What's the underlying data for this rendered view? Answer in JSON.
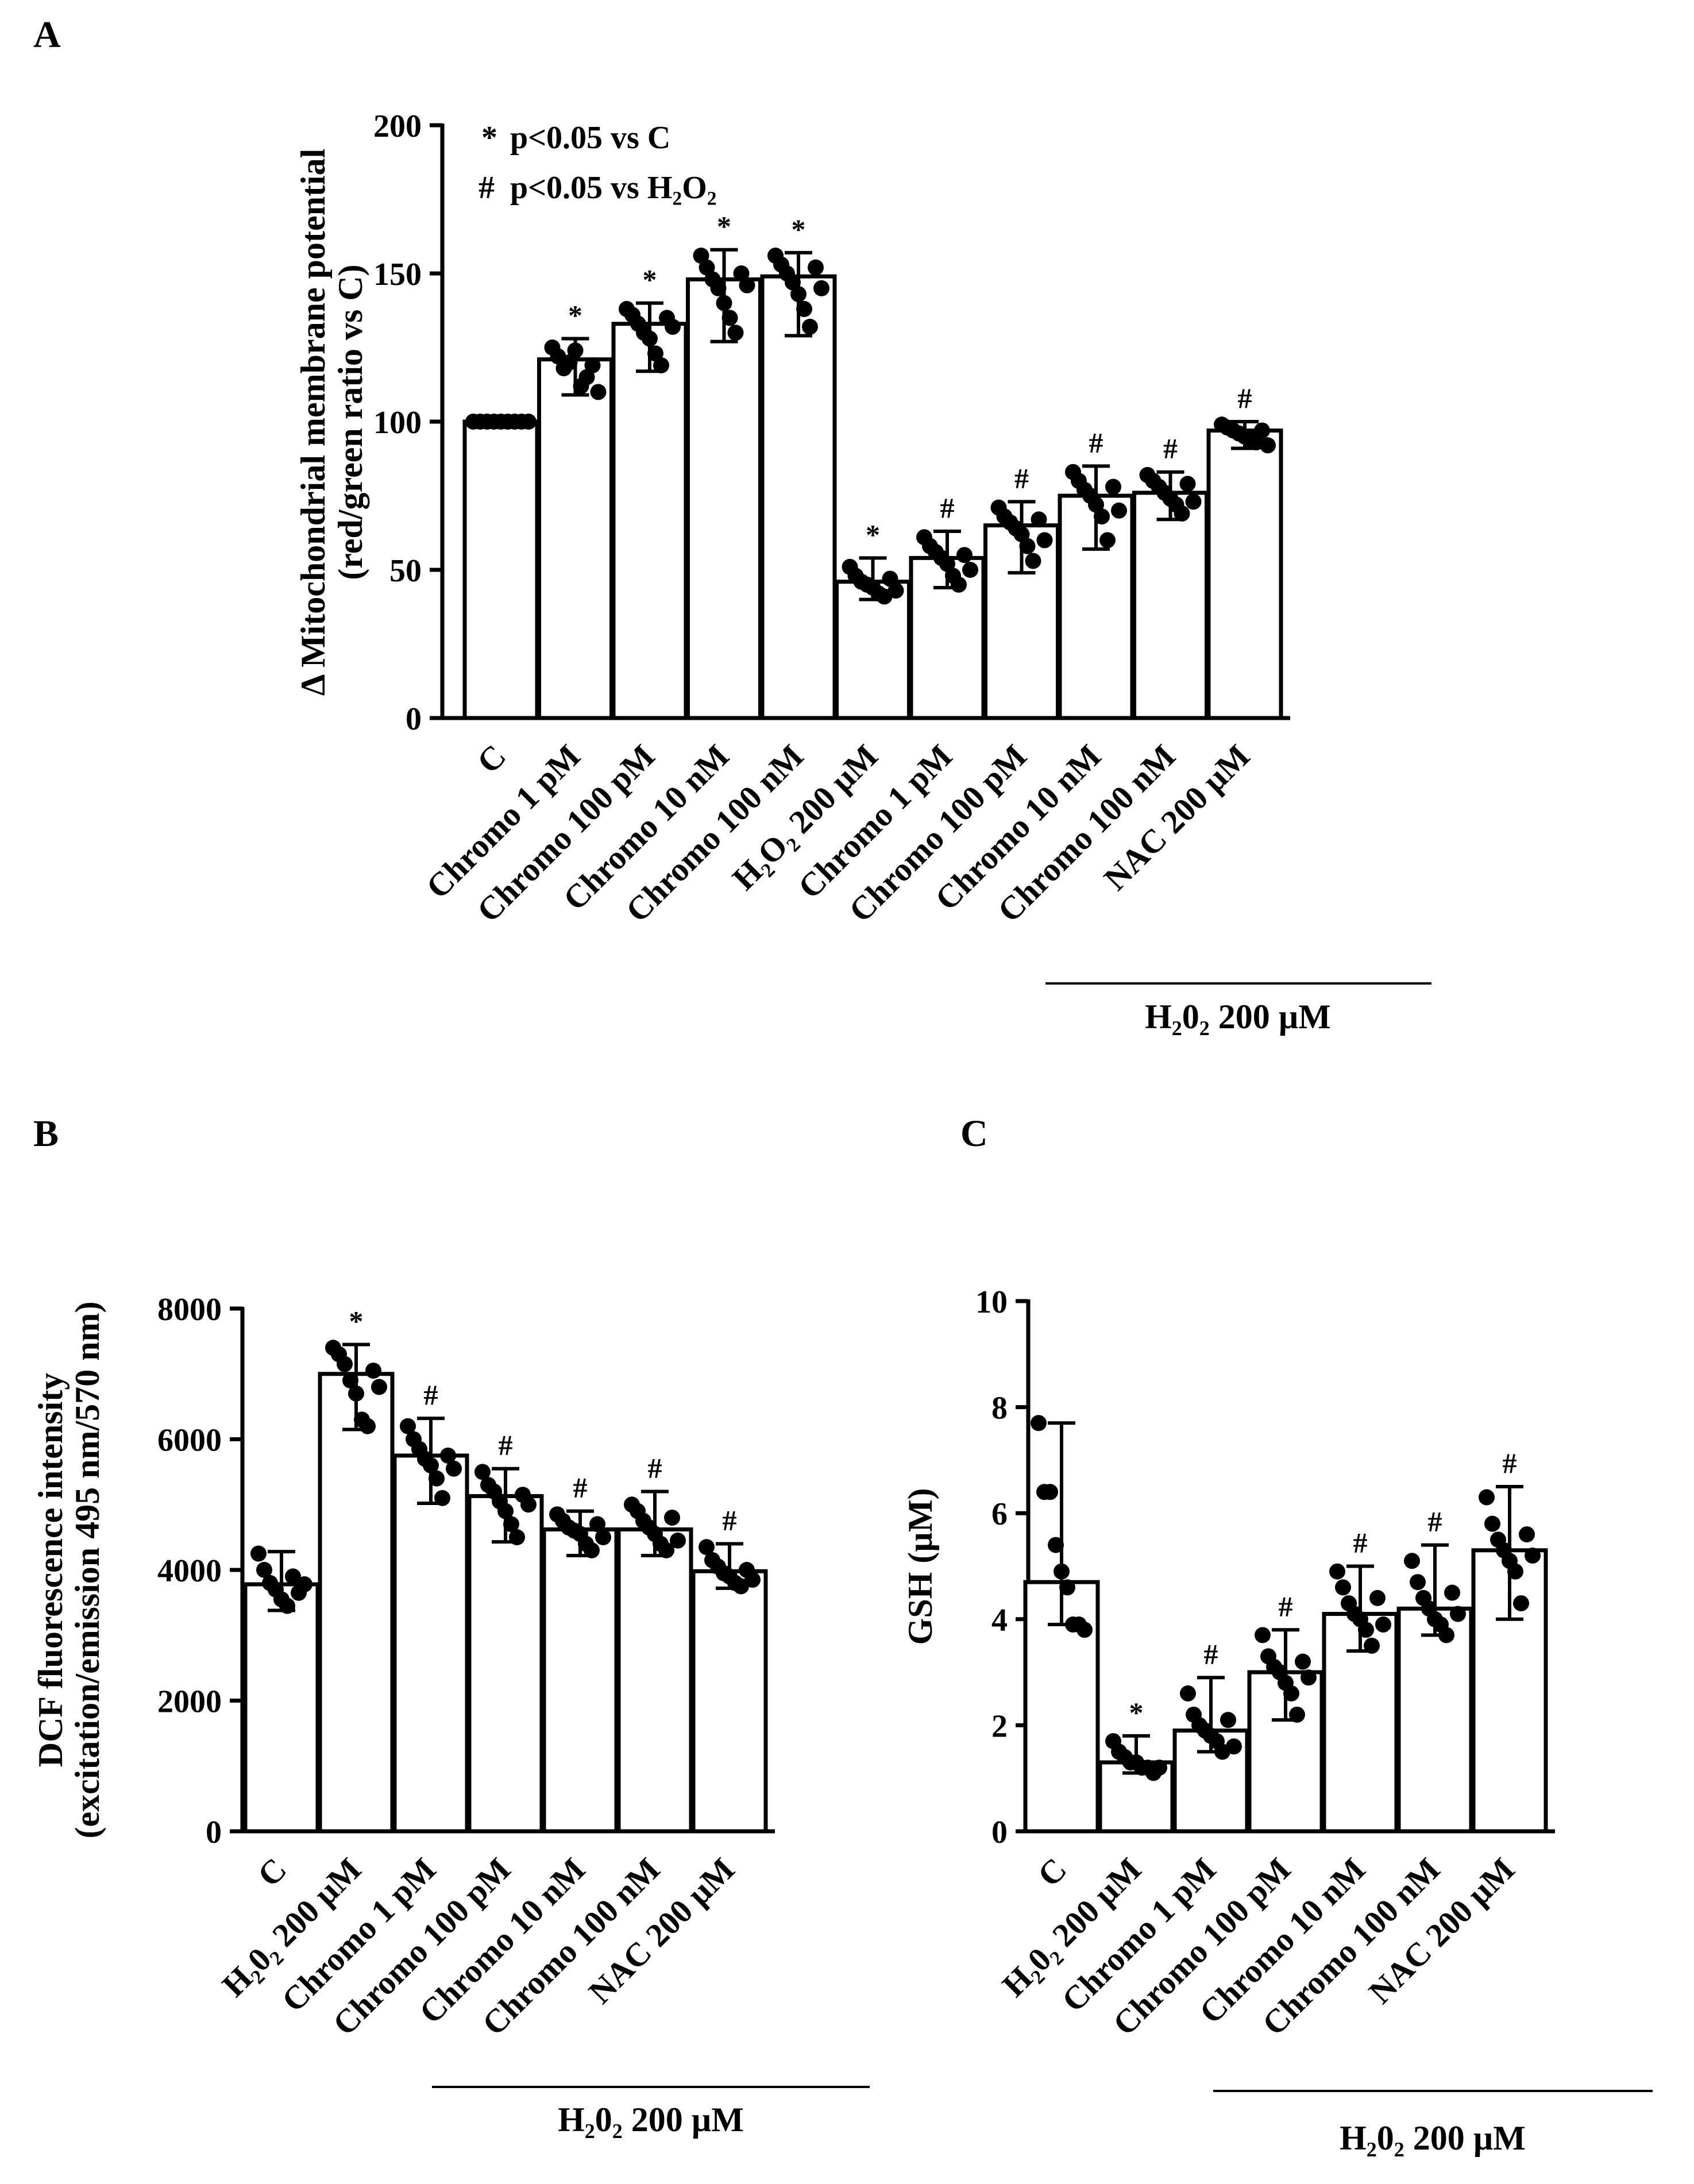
{
  "chart_data": [
    {
      "panel": "A",
      "type": "bar",
      "ylabel": "Δ Mitochondrial membrane potential",
      "ylabel2": "(red/green ratio vs C)",
      "yticks": [
        "0",
        "50",
        "100",
        "150",
        "200"
      ],
      "ylim": [
        0,
        200
      ],
      "categories": [
        "C",
        "Chromo 1 pM",
        "Chromo 100 pM",
        "Chromo 10 nM",
        "Chromo 100 nM",
        "H₂O₂ 200 µM",
        "Chromo 1 pM",
        "Chromo 100 pM",
        "Chromo 10 nM",
        "Chromo 100 nM",
        "NAC 200 µM"
      ],
      "values": [
        100,
        121,
        133,
        148,
        149,
        46,
        54,
        65,
        75,
        76,
        97
      ],
      "error_low": [
        100,
        109,
        117,
        127,
        129,
        40,
        44,
        49,
        57,
        67,
        91
      ],
      "error_high": [
        100,
        128,
        140,
        158,
        157,
        54,
        63,
        73,
        85,
        83,
        100
      ],
      "points": [
        [
          100,
          100,
          100,
          100,
          100,
          100,
          100,
          100,
          100
        ],
        [
          125,
          122,
          118,
          120,
          124,
          112,
          115,
          119,
          110
        ],
        [
          138,
          136,
          133,
          130,
          128,
          123,
          119,
          135,
          132
        ],
        [
          156,
          152,
          148,
          145,
          140,
          135,
          130,
          150,
          146
        ],
        [
          156,
          153,
          150,
          147,
          143,
          138,
          132,
          152,
          145
        ],
        [
          51,
          48,
          46,
          45,
          44,
          42,
          41,
          47,
          43
        ],
        [
          61,
          58,
          56,
          54,
          52,
          48,
          45,
          55,
          50
        ],
        [
          71,
          68,
          66,
          64,
          62,
          58,
          53,
          67,
          60
        ],
        [
          83,
          80,
          77,
          75,
          72,
          68,
          60,
          78,
          70
        ],
        [
          82,
          80,
          78,
          76,
          74,
          72,
          69,
          79,
          73
        ],
        [
          99,
          98,
          97,
          96,
          95,
          94,
          93,
          97,
          92
        ]
      ],
      "significance": [
        "",
        "*",
        "*",
        "*",
        "*",
        "*",
        "#",
        "#",
        "#",
        "#",
        "#"
      ],
      "legend": [
        "p<0.05 vs C",
        "p<0.05 vs H₂O₂"
      ],
      "group_label": "H₂0₂ 200 µM"
    },
    {
      "panel": "B",
      "type": "bar",
      "ylabel": "DCF fluorescence intensity",
      "ylabel2": "(excitation/emission 495 nm/570 nm)",
      "yticks": [
        "0",
        "2000",
        "4000",
        "6000",
        "8000"
      ],
      "ylim": [
        0,
        8000
      ],
      "categories": [
        "C",
        "H₂0₂ 200 µM",
        "Chromo 1 pM",
        "Chromo 100 pM",
        "Chromo 10 nM",
        "Chromo 100 nM",
        "NAC 200 µM"
      ],
      "values": [
        3780,
        7000,
        5750,
        5130,
        4620,
        4620,
        3980
      ],
      "error_low": [
        3380,
        6150,
        5020,
        4430,
        4220,
        4220,
        3720
      ],
      "error_high": [
        4280,
        7450,
        6320,
        5550,
        4900,
        5200,
        4400
      ],
      "points": [
        [
          4250,
          4000,
          3800,
          3700,
          3550,
          3450,
          3900,
          3650,
          3780
        ],
        [
          7400,
          7300,
          7150,
          6900,
          6700,
          6300,
          6200,
          7050,
          6800
        ],
        [
          6200,
          6000,
          5850,
          5700,
          5600,
          5400,
          5100,
          5750,
          5550
        ],
        [
          5500,
          5300,
          5200,
          5050,
          4900,
          4700,
          4500,
          5150,
          5000
        ],
        [
          4850,
          4750,
          4650,
          4600,
          4550,
          4400,
          4300,
          4700,
          4500
        ],
        [
          5000,
          4900,
          4750,
          4650,
          4550,
          4400,
          4300,
          4800,
          4450
        ],
        [
          4350,
          4150,
          4050,
          3950,
          3900,
          3800,
          3750,
          4000,
          3850
        ]
      ],
      "significance": [
        "",
        "*",
        "#",
        "#",
        "#",
        "#",
        "#"
      ],
      "group_label": "H₂0₂ 200 µM"
    },
    {
      "panel": "C",
      "type": "bar",
      "ylabel": "GSH (µM)",
      "yticks": [
        "0",
        "2",
        "4",
        "6",
        "8",
        "10"
      ],
      "ylim": [
        0,
        10
      ],
      "categories": [
        "C",
        "H₂0₂ 200 µM",
        "Chromo 1 pM",
        "Chromo 100 pM",
        "Chromo 10 nM",
        "Chromo 100 nM",
        "NAC 200 µM"
      ],
      "values": [
        4.7,
        1.3,
        1.9,
        3.0,
        4.1,
        4.2,
        5.3
      ],
      "error_low": [
        3.9,
        1.1,
        1.5,
        2.1,
        3.4,
        3.7,
        4.0
      ],
      "error_high": [
        7.7,
        1.8,
        2.9,
        3.8,
        5.0,
        5.4,
        6.5
      ],
      "points": [
        [
          7.7,
          6.4,
          6.4,
          5.4,
          4.9,
          4.6,
          3.9,
          3.9,
          3.8
        ],
        [
          1.7,
          1.5,
          1.4,
          1.3,
          1.3,
          1.2,
          1.2,
          1.1,
          1.2
        ],
        [
          2.6,
          2.2,
          2.0,
          1.9,
          1.8,
          1.7,
          1.5,
          2.1,
          1.6
        ],
        [
          3.7,
          3.3,
          3.1,
          3.0,
          2.8,
          2.6,
          2.2,
          3.2,
          2.9
        ],
        [
          4.9,
          4.6,
          4.3,
          4.1,
          4.0,
          3.8,
          3.5,
          4.4,
          3.9
        ],
        [
          5.1,
          4.7,
          4.4,
          4.2,
          4.0,
          3.9,
          3.7,
          4.5,
          4.1
        ],
        [
          6.3,
          5.8,
          5.5,
          5.3,
          5.1,
          4.9,
          4.3,
          5.6,
          5.2
        ]
      ],
      "significance": [
        "",
        "*",
        "#",
        "#",
        "#",
        "#",
        "#"
      ],
      "group_label": "H₂0₂ 200 µM"
    }
  ]
}
